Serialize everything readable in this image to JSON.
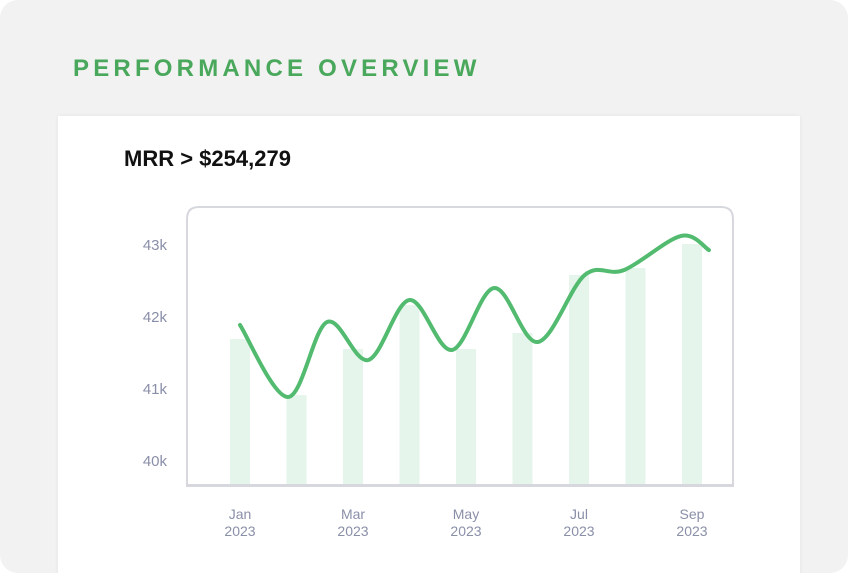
{
  "header": {
    "title": "PERFORMANCE OVERVIEW"
  },
  "chart_data": {
    "type": "bar-line",
    "title": "MRR > $254,279",
    "categories": [
      "Jan 2023",
      null,
      "Mar 2023",
      null,
      "May 2023",
      null,
      "Jul 2023",
      null,
      "Sep 2023"
    ],
    "values": [
      41708,
      40930,
      41569,
      42180,
      41569,
      41792,
      42597,
      42694,
      43028
    ],
    "color": "#e6f5ec",
    "line": {
      "color": "#52bb6f",
      "x": [
        0,
        0.85,
        1.54,
        2.27,
        3.0,
        3.75,
        4.5,
        5.27,
        6.1,
        6.8,
        7.8,
        8.3
      ],
      "values": [
        41903,
        40903,
        41944,
        41417,
        42250,
        41556,
        42417,
        41667,
        42597,
        42667,
        43139,
        42944
      ]
    },
    "ylim": [
      39667,
      43542
    ],
    "yticks": [
      {
        "value": 40000,
        "label": "40k"
      },
      {
        "value": 41000,
        "label": "41k"
      },
      {
        "value": 42000,
        "label": "42k"
      },
      {
        "value": 43000,
        "label": "43k"
      }
    ]
  }
}
